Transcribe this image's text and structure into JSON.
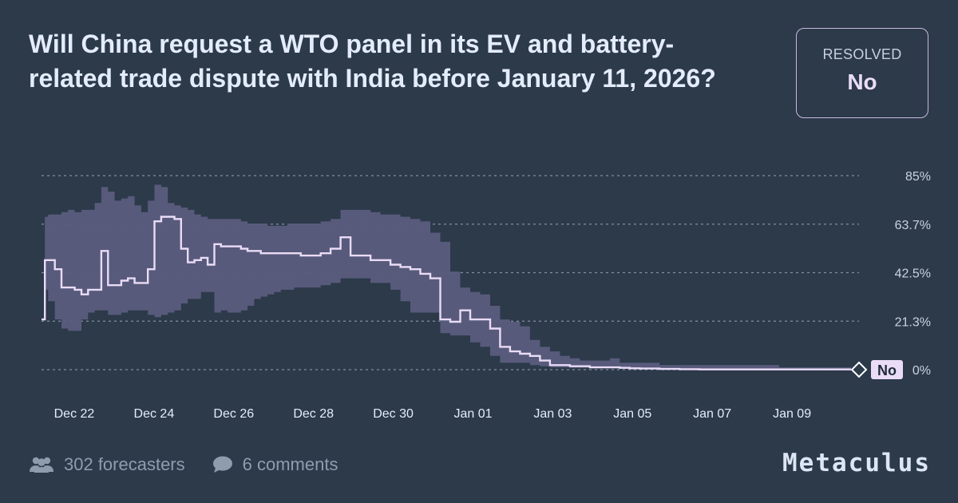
{
  "question": {
    "title": "Will China request a WTO panel in its EV and battery-related trade dispute with India before January 11, 2026?"
  },
  "resolution": {
    "label": "RESOLVED",
    "value": "No"
  },
  "footer": {
    "forecasters": "302 forecasters",
    "comments": "6 comments",
    "brand": "Metaculus",
    "forecasters_icon": "users-icon",
    "comments_icon": "speech-bubble-icon"
  },
  "colors": {
    "background": "#2c3a4a",
    "band": "#5b5c7d",
    "line": "#eadcf7",
    "grid": "#aab4c4"
  },
  "chart_data": {
    "type": "line",
    "title": "",
    "xlabel": "",
    "ylabel": "",
    "x_ticks": [
      "Dec 22",
      "Dec 24",
      "Dec 26",
      "Dec 28",
      "Dec 30",
      "Jan 01",
      "Jan 03",
      "Jan 05",
      "Jan 07",
      "Jan 09"
    ],
    "y_ticks": [
      "85%",
      "63.7%",
      "42.5%",
      "21.3%",
      "0%"
    ],
    "ylim": [
      0,
      85
    ],
    "grid": true,
    "resolution_marker": "No",
    "series": [
      {
        "role": "community-prediction",
        "x": [
          "2025-12-21 12:00",
          "2025-12-21 14:00",
          "2025-12-21 16:00",
          "2025-12-21 20:00",
          "2025-12-22 00:00",
          "2025-12-22 04:00",
          "2025-12-22 08:00",
          "2025-12-22 12:00",
          "2025-12-22 16:00",
          "2025-12-22 20:00",
          "2025-12-23 00:00",
          "2025-12-23 04:00",
          "2025-12-23 08:00",
          "2025-12-23 12:00",
          "2025-12-23 16:00",
          "2025-12-23 20:00",
          "2025-12-24 00:00",
          "2025-12-24 04:00",
          "2025-12-24 08:00",
          "2025-12-24 12:00",
          "2025-12-24 16:00",
          "2025-12-24 20:00",
          "2025-12-25 00:00",
          "2025-12-25 04:00",
          "2025-12-25 08:00",
          "2025-12-25 12:00",
          "2025-12-25 16:00",
          "2025-12-25 20:00",
          "2025-12-26 00:00",
          "2025-12-26 04:00",
          "2025-12-26 08:00",
          "2025-12-26 12:00",
          "2025-12-26 16:00",
          "2025-12-26 20:00",
          "2025-12-27 00:00",
          "2025-12-27 04:00",
          "2025-12-27 08:00",
          "2025-12-27 12:00",
          "2025-12-27 16:00",
          "2025-12-27 20:00",
          "2025-12-28 00:00",
          "2025-12-28 06:00",
          "2025-12-28 12:00",
          "2025-12-28 18:00",
          "2025-12-29 00:00",
          "2025-12-29 06:00",
          "2025-12-29 12:00",
          "2025-12-29 18:00",
          "2025-12-30 00:00",
          "2025-12-30 06:00",
          "2025-12-30 12:00",
          "2025-12-30 18:00",
          "2025-12-31 00:00",
          "2025-12-31 06:00",
          "2025-12-31 12:00",
          "2025-12-31 18:00",
          "2026-01-01 00:00",
          "2026-01-01 06:00",
          "2026-01-01 12:00",
          "2026-01-01 18:00",
          "2026-01-02 00:00",
          "2026-01-02 06:00",
          "2026-01-02 12:00",
          "2026-01-02 18:00",
          "2026-01-03 00:00",
          "2026-01-03 06:00",
          "2026-01-03 12:00",
          "2026-01-03 18:00",
          "2026-01-04 00:00",
          "2026-01-04 06:00",
          "2026-01-04 12:00",
          "2026-01-04 18:00",
          "2026-01-05 00:00",
          "2026-01-05 06:00",
          "2026-01-05 12:00",
          "2026-01-06 00:00",
          "2026-01-06 12:00",
          "2026-01-07 00:00",
          "2026-01-07 12:00",
          "2026-01-08 00:00",
          "2026-01-09 00:00",
          "2026-01-10 00:00",
          "2026-01-10 12:00"
        ],
        "y": [
          22,
          48,
          48,
          44,
          36,
          36,
          35,
          33,
          35,
          35,
          52,
          37,
          37,
          39,
          40,
          38,
          38,
          44,
          65,
          67,
          67,
          66,
          53,
          47,
          48,
          49,
          46,
          55,
          54,
          54,
          54,
          53,
          52,
          52,
          51,
          51,
          51,
          51,
          51,
          51,
          50,
          50,
          51,
          53,
          58,
          50,
          50,
          48,
          48,
          46,
          45,
          44,
          42,
          40,
          22,
          21,
          26,
          22,
          22,
          18,
          10,
          8,
          7,
          6,
          4,
          2,
          2,
          1.5,
          1.5,
          1,
          1,
          1,
          0.8,
          0.6,
          0.5,
          0.3,
          0.2,
          0.1,
          0.1,
          0.1,
          0.1,
          0.1,
          0.1
        ],
        "lower": [
          22,
          35,
          30,
          22,
          18,
          17,
          17,
          22,
          25,
          26,
          26,
          24,
          24,
          25,
          26,
          26,
          26,
          24,
          23,
          24,
          25,
          26,
          29,
          31,
          31,
          34,
          34,
          25,
          26,
          25,
          25,
          26,
          28,
          31,
          32,
          33,
          34,
          35,
          35,
          36,
          36,
          36,
          37,
          38,
          40,
          40,
          40,
          38,
          38,
          35,
          30,
          25,
          25,
          25,
          16,
          15,
          15,
          12,
          10,
          6,
          3,
          3,
          3,
          2,
          1.5,
          1,
          1,
          0.8,
          0.8,
          0.6,
          0.6,
          0.6,
          0.5,
          0.4,
          0.3,
          0.2,
          0.1,
          0.1,
          0.1,
          0.1,
          0.1,
          0.1,
          0.1
        ],
        "upper": [
          22,
          67,
          68,
          68,
          69,
          70,
          69,
          70,
          70,
          73,
          80,
          78,
          74,
          75,
          76,
          72,
          69,
          74,
          81,
          80,
          73,
          72,
          71,
          70,
          68,
          67,
          66,
          66,
          66,
          66,
          66,
          65,
          64,
          64,
          64,
          63,
          63,
          63,
          64,
          64,
          64,
          64,
          65,
          66,
          70,
          70,
          70,
          69,
          68,
          68,
          67,
          66,
          65,
          60,
          56,
          43,
          36,
          34,
          33,
          28,
          22,
          21,
          19,
          13,
          10,
          8,
          6,
          5,
          4,
          4,
          4,
          5,
          3,
          3,
          3,
          2,
          2,
          2,
          2,
          2,
          1,
          1,
          1
        ]
      }
    ]
  }
}
